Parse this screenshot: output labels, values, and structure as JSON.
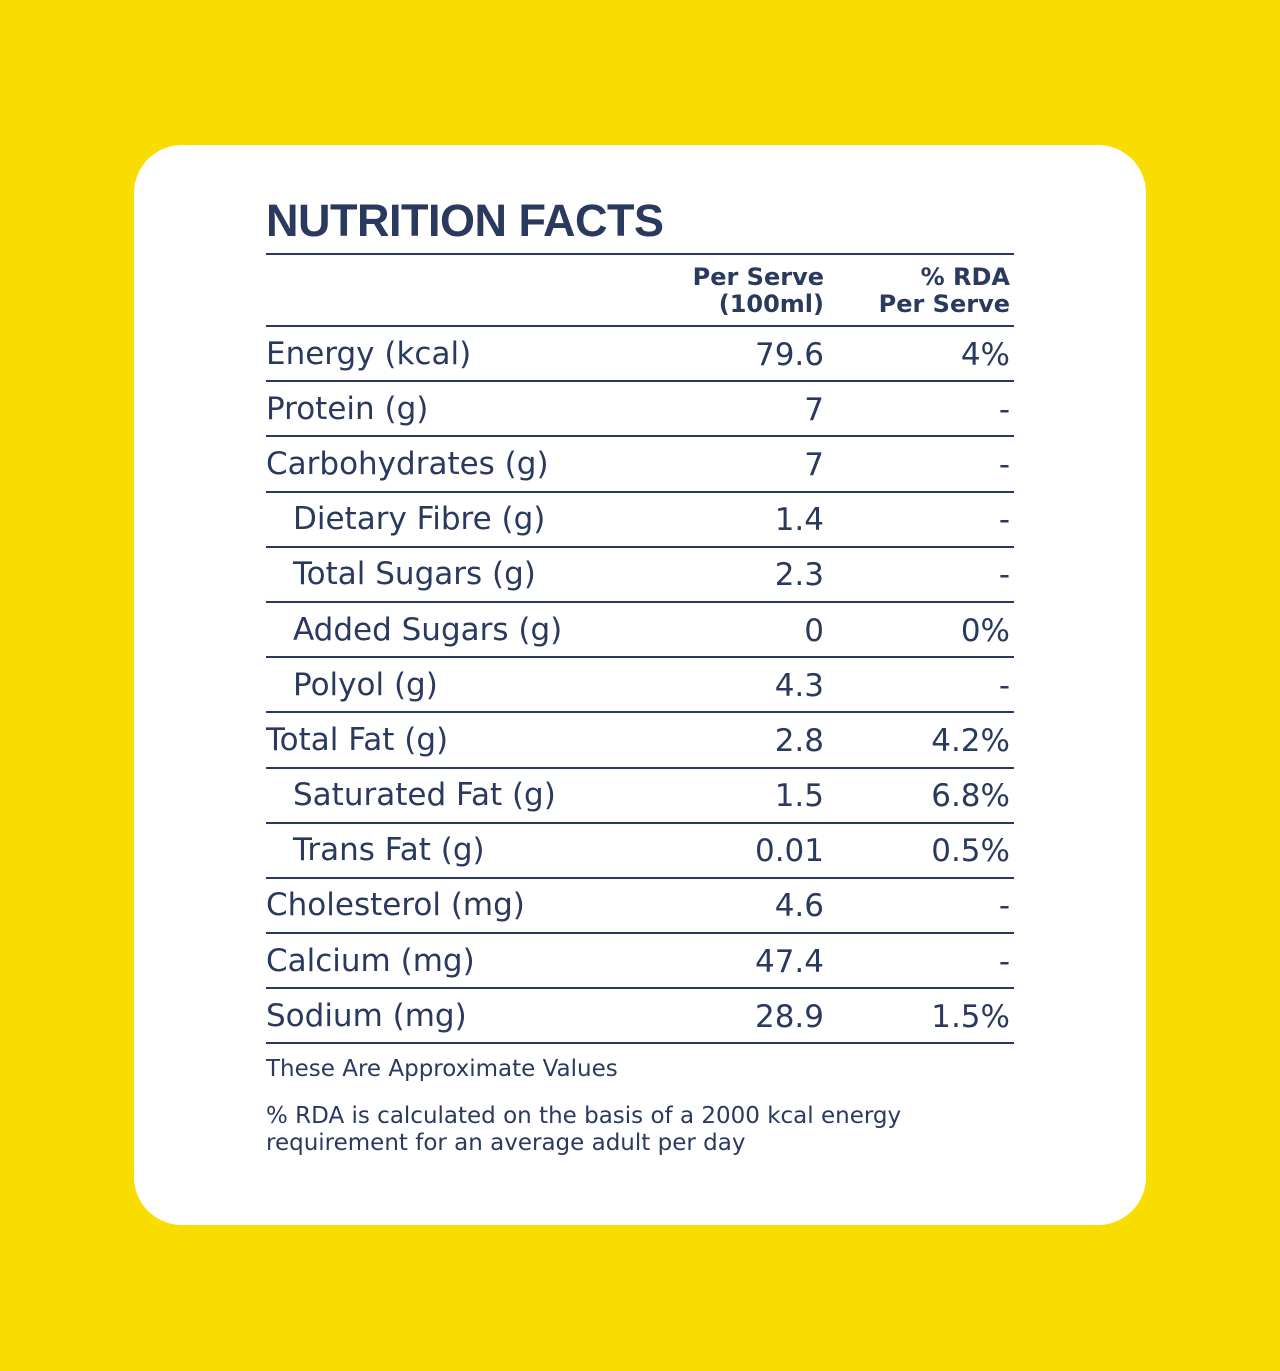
{
  "title": "NUTRITION FACTS",
  "columns": {
    "per_serve_line1": "Per Serve",
    "per_serve_line2": "(100ml)",
    "rda_line1": "% RDA",
    "rda_line2": "Per Serve"
  },
  "rows": [
    {
      "label": "Energy (kcal)",
      "per_serve": "79.6",
      "rda": "4%"
    },
    {
      "label": "Protein (g)",
      "per_serve": "7",
      "rda": "-"
    },
    {
      "label": "Carbohydrates (g)",
      "per_serve": "7",
      "rda": "-"
    },
    {
      "label": "Dietary Fibre (g)",
      "per_serve": "1.4",
      "rda": "-"
    },
    {
      "label": "Total Sugars (g)",
      "per_serve": "2.3",
      "rda": "-"
    },
    {
      "label": "Added Sugars (g)",
      "per_serve": "0",
      "rda": "0%"
    },
    {
      "label": "Polyol (g)",
      "per_serve": "4.3",
      "rda": "-"
    },
    {
      "label": "Total Fat (g)",
      "per_serve": "2.8",
      "rda": "4.2%"
    },
    {
      "label": "Saturated Fat (g)",
      "per_serve": "1.5",
      "rda": "6.8%"
    },
    {
      "label": "Trans Fat (g)",
      "per_serve": "0.01",
      "rda": "0.5%"
    },
    {
      "label": "Cholesterol (mg)",
      "per_serve": "4.6",
      "rda": "-"
    },
    {
      "label": "Calcium (mg)",
      "per_serve": "47.4",
      "rda": "-"
    },
    {
      "label": "Sodium (mg)",
      "per_serve": "28.9",
      "rda": "1.5%"
    }
  ],
  "notes": {
    "approx": "These Are Approximate Values",
    "rda_basis": "% RDA is calculated on the basis of a 2000 kcal energy requirement for an average adult per day"
  },
  "colors": {
    "background": "#F9DC00",
    "card": "#FFFFFF",
    "text": "#2A3A5E"
  }
}
